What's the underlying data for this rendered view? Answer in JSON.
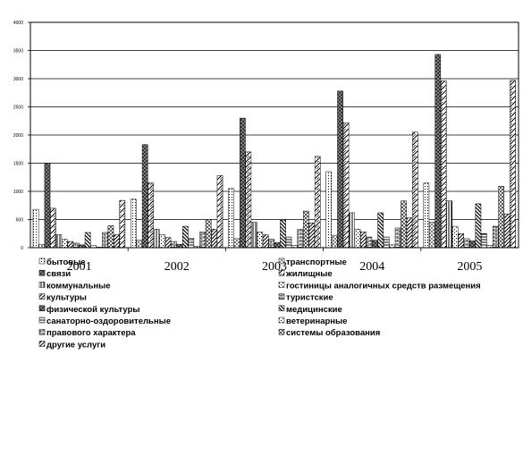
{
  "chart_data": {
    "type": "bar",
    "categories": [
      "2001",
      "2002",
      "2003",
      "2004",
      "2005"
    ],
    "y_tick_labels": [
      "0",
      "500",
      "1000",
      "1500",
      "2000",
      "2500",
      "3000",
      "3500",
      "4000"
    ],
    "ylim": [
      0,
      4000
    ],
    "grid": true,
    "legend_position": "bottom",
    "series": [
      {
        "name": "бытовые",
        "values": [
          680,
          860,
          1050,
          1350,
          1150
        ],
        "pattern": "dots"
      },
      {
        "name": "транспортные",
        "values": [
          60,
          130,
          160,
          220,
          450
        ],
        "pattern": "dash"
      },
      {
        "name": "связи",
        "values": [
          1500,
          1830,
          2300,
          2780,
          3430
        ],
        "pattern": "cross"
      },
      {
        "name": "жилищные",
        "values": [
          700,
          1150,
          1700,
          2220,
          2960
        ],
        "pattern": "zigzag"
      },
      {
        "name": "коммунальные",
        "values": [
          230,
          330,
          450,
          620,
          830
        ],
        "pattern": "vlines"
      },
      {
        "name": "гостиницы аналогичных средств размещения",
        "values": [
          150,
          230,
          280,
          330,
          380
        ],
        "pattern": "dots2"
      },
      {
        "name": "культуры",
        "values": [
          110,
          180,
          230,
          280,
          250
        ],
        "pattern": "diag"
      },
      {
        "name": "туристские",
        "values": [
          80,
          110,
          150,
          190,
          160
        ],
        "pattern": "brick"
      },
      {
        "name": "физической культуры",
        "values": [
          50,
          60,
          90,
          130,
          120
        ],
        "pattern": "cross"
      },
      {
        "name": "медицинские",
        "values": [
          270,
          380,
          490,
          620,
          780
        ],
        "pattern": "rdiag"
      },
      {
        "name": "санаторно-оздоровительные",
        "values": [
          40,
          170,
          190,
          190,
          250
        ],
        "pattern": "hlines"
      },
      {
        "name": "ветеринарные",
        "values": [
          10,
          25,
          40,
          50,
          40
        ],
        "pattern": "dots2"
      },
      {
        "name": "правового характера",
        "values": [
          270,
          280,
          330,
          350,
          380
        ],
        "pattern": "brick"
      },
      {
        "name": "системы образования",
        "values": [
          390,
          500,
          650,
          830,
          1090
        ],
        "pattern": "diamond"
      },
      {
        "name": "другие услуги",
        "values": [
          230,
          330,
          440,
          530,
          600
        ],
        "pattern": "diag"
      },
      {
        "name": "",
        "values": [
          840,
          1280,
          1620,
          2050,
          2970
        ],
        "pattern": "zigzag"
      }
    ]
  }
}
